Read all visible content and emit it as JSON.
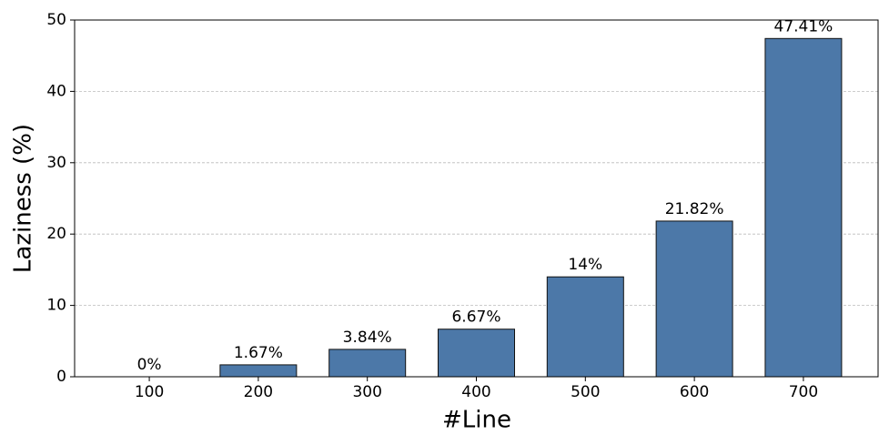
{
  "chart_data": {
    "type": "bar",
    "x_label": "#Line",
    "y_label": "Laziness (%)",
    "categories": [
      "100",
      "200",
      "300",
      "400",
      "500",
      "600",
      "700"
    ],
    "values": [
      0,
      1.67,
      3.84,
      6.67,
      14,
      21.82,
      47.41
    ],
    "value_labels": [
      "0%",
      "1.67%",
      "3.84%",
      "6.67%",
      "14%",
      "21.82%",
      "47.41%"
    ],
    "color": "#4c78a8",
    "ylim": [
      0,
      50
    ],
    "yticks": [
      0,
      10,
      20,
      30,
      40,
      50
    ],
    "grid": true
  }
}
